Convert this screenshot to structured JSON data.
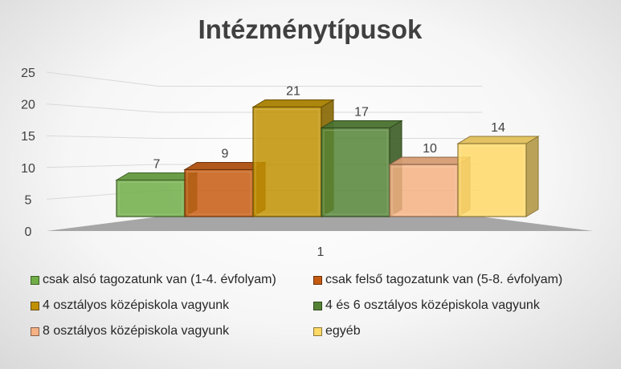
{
  "chart_data": {
    "type": "bar",
    "title": "Intézménytípusok",
    "categories": [
      "1"
    ],
    "yticks": [
      "0",
      "5",
      "10",
      "15",
      "20",
      "25"
    ],
    "ylim": [
      0,
      25
    ],
    "grid": true,
    "legend_position": "bottom",
    "series": [
      {
        "name": "csak alsó tagozatunk van (1-4. évfolyam)",
        "values": [
          7
        ],
        "color": "#70ad47"
      },
      {
        "name": "csak felső tagozatunk van (5-8. évfolyam)",
        "values": [
          9
        ],
        "color": "#c55a11"
      },
      {
        "name": "4 osztályos középiskola vagyunk",
        "values": [
          21
        ],
        "color": "#bf9000"
      },
      {
        "name": "4 és 6 osztályos középiskola vagyunk",
        "values": [
          17
        ],
        "color": "#548235"
      },
      {
        "name": "8 osztályos középiskola vagyunk",
        "values": [
          10
        ],
        "color": "#f4b183"
      },
      {
        "name": "egyéb",
        "values": [
          14
        ],
        "color": "#ffd966"
      }
    ]
  }
}
